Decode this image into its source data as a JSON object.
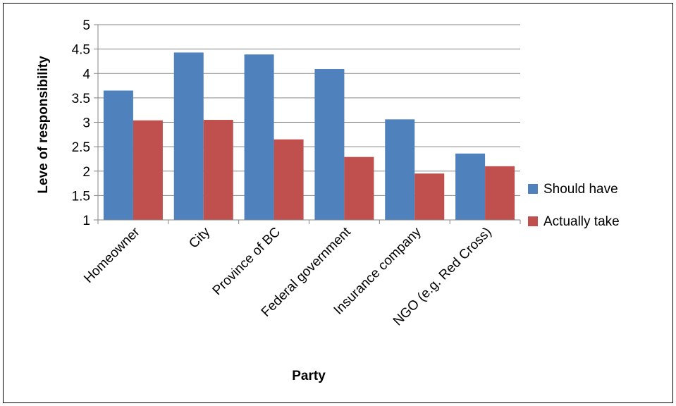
{
  "chart_data": {
    "type": "bar",
    "title": "",
    "xlabel": "Party",
    "ylabel": "Leve of responsibility",
    "categories": [
      "Homeowner",
      "City",
      "Province of BC",
      "Federal government",
      "Insurance company",
      "NGO (e.g. Red Cross)"
    ],
    "series": [
      {
        "name": "Should have",
        "color": "#4F81BD",
        "values": [
          3.65,
          4.43,
          4.39,
          4.09,
          3.06,
          2.36
        ]
      },
      {
        "name": "Actually take",
        "color": "#C0504D",
        "values": [
          3.04,
          3.05,
          2.65,
          2.29,
          1.95,
          2.1
        ]
      }
    ],
    "ylim": [
      1,
      5
    ],
    "yticks": [
      "1",
      "1.5",
      "2",
      "2.5",
      "3",
      "3.5",
      "4",
      "4.5",
      "5"
    ],
    "grid": true,
    "legend_position": "right"
  }
}
